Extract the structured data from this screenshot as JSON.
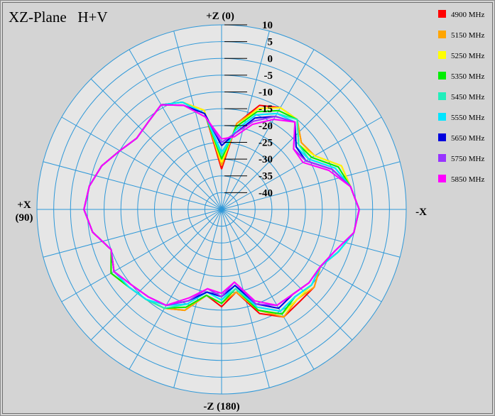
{
  "chart_data": {
    "type": "polar-line",
    "title": "XZ-Plane   H+V",
    "direction_labels": {
      "top": "+Z (0)",
      "bottom": "-Z (180)",
      "left": "+X",
      "left_sub": "(90)",
      "right": "-X"
    },
    "r_ticks": [
      "10",
      "5",
      "0",
      "-5",
      "-10",
      "-15",
      "-20",
      "-25",
      "-30",
      "-35",
      "-40"
    ],
    "r_range": [
      -45,
      10
    ],
    "angle_spokes_deg": 15,
    "grid": true,
    "legend_position": "right",
    "angles_deg": [
      0,
      10,
      20,
      30,
      40,
      50,
      60,
      70,
      80,
      90,
      100,
      110,
      120,
      130,
      140,
      150,
      160,
      170,
      180,
      190,
      200,
      210,
      220,
      230,
      240,
      250,
      260,
      270,
      280,
      290,
      300,
      310,
      320,
      330,
      340,
      350
    ],
    "series": [
      {
        "name": "4900 MHz",
        "color": "#ff0000",
        "values": [
          -33,
          -19,
          -12,
          -10,
          -10,
          -14,
          -13,
          -7,
          -6,
          -4,
          -5,
          -8,
          -11,
          -9,
          -9,
          -8,
          -12,
          -20,
          -16,
          -19,
          -13,
          -11,
          -10,
          -9,
          -7,
          -10,
          -6,
          -4,
          -5,
          -7,
          -10,
          -12,
          -11,
          -9,
          -11,
          -15
        ]
      },
      {
        "name": "5150 MHz",
        "color": "#ffa500",
        "values": [
          -32,
          -19,
          -13,
          -10,
          -10,
          -14,
          -13,
          -7,
          -6,
          -4,
          -5,
          -8,
          -11,
          -9,
          -10,
          -8,
          -13,
          -20,
          -17,
          -19,
          -13,
          -11,
          -10,
          -9,
          -7,
          -10,
          -6,
          -4,
          -5,
          -7,
          -10,
          -12,
          -11,
          -9,
          -11,
          -15
        ]
      },
      {
        "name": "5250 MHz",
        "color": "#ffff00",
        "values": [
          -31,
          -20,
          -13,
          -10,
          -10,
          -15,
          -13,
          -7,
          -6,
          -4,
          -5,
          -8,
          -11,
          -10,
          -10,
          -9,
          -13,
          -21,
          -17,
          -19,
          -14,
          -11,
          -10,
          -9,
          -7,
          -10,
          -6,
          -4,
          -5,
          -7,
          -10,
          -12,
          -11,
          -9,
          -11,
          -15
        ]
      },
      {
        "name": "5350 MHz",
        "color": "#00ee00",
        "values": [
          -30,
          -20,
          -14,
          -11,
          -10,
          -15,
          -14,
          -8,
          -6,
          -4,
          -5,
          -8,
          -11,
          -10,
          -11,
          -9,
          -13,
          -21,
          -17,
          -19,
          -14,
          -11,
          -10,
          -9,
          -7,
          -10,
          -6,
          -4,
          -5,
          -7,
          -10,
          -12,
          -11,
          -9,
          -11,
          -16
        ]
      },
      {
        "name": "5450 MHz",
        "color": "#22eebb",
        "values": [
          -29,
          -21,
          -15,
          -12,
          -10,
          -15,
          -15,
          -9,
          -6,
          -4,
          -5,
          -8,
          -11,
          -10,
          -11,
          -10,
          -14,
          -21,
          -18,
          -20,
          -15,
          -11,
          -10,
          -9,
          -8,
          -10,
          -6,
          -4,
          -5,
          -7,
          -10,
          -12,
          -11,
          -9,
          -11,
          -16
        ]
      },
      {
        "name": "5550 MHz",
        "color": "#00e5ff",
        "values": [
          -28,
          -21,
          -15,
          -12,
          -11,
          -16,
          -15,
          -9,
          -6,
          -4,
          -5,
          -8,
          -11,
          -10,
          -11,
          -10,
          -14,
          -22,
          -18,
          -20,
          -15,
          -12,
          -10,
          -9,
          -8,
          -10,
          -6,
          -4,
          -5,
          -7,
          -10,
          -12,
          -11,
          -9,
          -11,
          -16
        ]
      },
      {
        "name": "5650 MHz",
        "color": "#0000dd",
        "values": [
          -26,
          -22,
          -16,
          -13,
          -11,
          -16,
          -16,
          -10,
          -6,
          -4,
          -5,
          -9,
          -11,
          -11,
          -12,
          -11,
          -15,
          -22,
          -19,
          -20,
          -16,
          -12,
          -11,
          -10,
          -8,
          -10,
          -6,
          -4,
          -5,
          -7,
          -10,
          -12,
          -11,
          -9,
          -12,
          -16
        ]
      },
      {
        "name": "5750 MHz",
        "color": "#9933ff",
        "values": [
          -25,
          -22,
          -17,
          -13,
          -11,
          -17,
          -16,
          -10,
          -6,
          -4,
          -5,
          -9,
          -11,
          -11,
          -12,
          -12,
          -15,
          -23,
          -19,
          -21,
          -16,
          -12,
          -11,
          -10,
          -8,
          -10,
          -6,
          -4,
          -5,
          -7,
          -10,
          -12,
          -11,
          -9,
          -12,
          -17
        ]
      },
      {
        "name": "5850 MHz",
        "color": "#ff00ff",
        "values": [
          -24,
          -23,
          -18,
          -14,
          -11,
          -17,
          -17,
          -11,
          -6,
          -4,
          -5,
          -9,
          -11,
          -11,
          -12,
          -12,
          -16,
          -23,
          -20,
          -21,
          -17,
          -12,
          -11,
          -10,
          -8,
          -10,
          -6,
          -4,
          -5,
          -7,
          -10,
          -12,
          -11,
          -9,
          -12,
          -17
        ]
      }
    ]
  }
}
